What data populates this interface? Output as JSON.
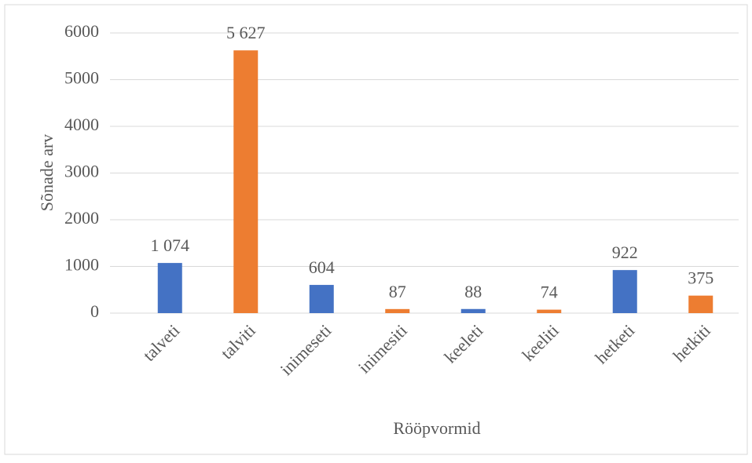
{
  "chart_data": {
    "type": "bar",
    "categories": [
      "talveti",
      "talviti",
      "inimeseti",
      "inimesiti",
      "keeleti",
      "keeliti",
      "hetketi",
      "hetkiti"
    ],
    "values": [
      1074,
      5627,
      604,
      87,
      88,
      74,
      922,
      375
    ],
    "value_labels": [
      "1 074",
      "5 627",
      "604",
      "87",
      "88",
      "74",
      "922",
      "375"
    ],
    "colors": [
      "#4472c4",
      "#ed7d31",
      "#4472c4",
      "#ed7d31",
      "#4472c4",
      "#ed7d31",
      "#4472c4",
      "#ed7d31"
    ],
    "y_label": "Sõnade arv",
    "x_label": "Rööpvormid",
    "ylim": [
      0,
      6000
    ],
    "yticks": [
      0,
      1000,
      2000,
      3000,
      4000,
      5000,
      6000
    ],
    "grid": true
  }
}
